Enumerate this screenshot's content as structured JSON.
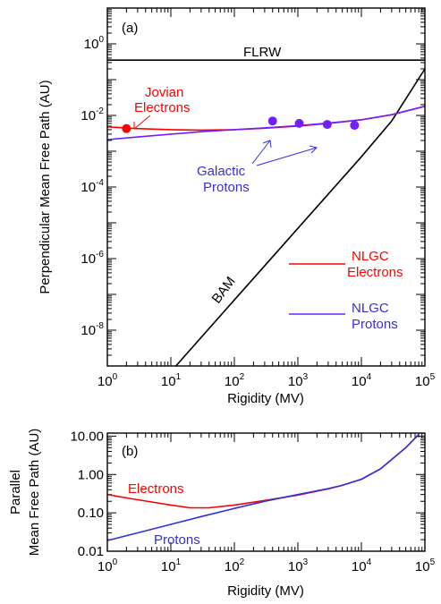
{
  "chart_data": [
    {
      "type": "line",
      "panel_label": "(a)",
      "xlabel": "Rigidity (MV)",
      "ylabel": "Perpendicular Mean Free Path (AU)",
      "xscale": "log",
      "yscale": "log",
      "xlim": [
        1,
        100000
      ],
      "ylim": [
        1e-09,
        10
      ],
      "x_ticks": [
        {
          "base": "10",
          "exp": "0"
        },
        {
          "base": "10",
          "exp": "1"
        },
        {
          "base": "10",
          "exp": "2"
        },
        {
          "base": "10",
          "exp": "3"
        },
        {
          "base": "10",
          "exp": "4"
        },
        {
          "base": "10",
          "exp": "5"
        }
      ],
      "y_ticks": [
        {
          "base": "10",
          "exp": "0",
          "value": 1
        },
        {
          "base": "10",
          "exp": "-2",
          "value": 0.01
        },
        {
          "base": "10",
          "exp": "-4",
          "value": 0.0001
        },
        {
          "base": "10",
          "exp": "-6",
          "value": 1e-06
        },
        {
          "base": "10",
          "exp": "-8",
          "value": 1e-08
        }
      ],
      "series": [
        {
          "name": "FLRW",
          "color": "#000000",
          "x": [
            1,
            100000
          ],
          "y": [
            0.35,
            0.35
          ]
        },
        {
          "name": "BAM",
          "color": "#000000",
          "x": [
            12,
            100,
            1000,
            10000,
            30000,
            100000
          ],
          "y": [
            1e-09,
            7e-08,
            7e-06,
            0.0007,
            0.007,
            0.2
          ]
        },
        {
          "name": "NLGC Electrons",
          "color": "#ff0000",
          "x": [
            1,
            3,
            10,
            30,
            100,
            300,
            1000,
            3000,
            10000,
            30000,
            100000
          ],
          "y": [
            0.0048,
            0.0043,
            0.004,
            0.0039,
            0.004,
            0.0044,
            0.005,
            0.006,
            0.0075,
            0.0105,
            0.018
          ]
        },
        {
          "name": "NLGC Protons",
          "color": "#7020ff",
          "x": [
            1,
            3,
            10,
            30,
            100,
            300,
            1000,
            3000,
            10000,
            30000,
            100000
          ],
          "y": [
            0.0021,
            0.0025,
            0.003,
            0.0035,
            0.004,
            0.0045,
            0.0052,
            0.0061,
            0.0076,
            0.0105,
            0.018
          ]
        }
      ],
      "points": [
        {
          "group": "Jovian Electrons",
          "color": "#ff0000",
          "x": 2,
          "y": 0.0043
        },
        {
          "group": "Galactic Protons",
          "color": "#7020ff",
          "x": 400,
          "y": 0.007
        },
        {
          "group": "Galactic Protons",
          "color": "#7020ff",
          "x": 1050,
          "y": 0.006
        },
        {
          "group": "Galactic Protons",
          "color": "#7020ff",
          "x": 2900,
          "y": 0.0056
        },
        {
          "group": "Galactic Protons",
          "color": "#7020ff",
          "x": 7800,
          "y": 0.0053
        }
      ],
      "annotations": {
        "flrw": "FLRW",
        "bam": "BAM",
        "jovian_line1": "Jovian",
        "jovian_line2": "Electrons",
        "galactic_line1": "Galactic",
        "galactic_line2": "Protons",
        "legend_electrons_line1": "NLGC",
        "legend_electrons_line2": "Electrons",
        "legend_protons_line1": "NLGC",
        "legend_protons_line2": "Protons"
      }
    },
    {
      "type": "line",
      "panel_label": "(b)",
      "xlabel": "Rigidity (MV)",
      "ylabel_line1": "Parallel",
      "ylabel_line2": "Mean Free Path (AU)",
      "xscale": "log",
      "yscale": "log",
      "xlim": [
        1,
        100000
      ],
      "ylim": [
        0.01,
        12
      ],
      "x_ticks": [
        {
          "base": "10",
          "exp": "0"
        },
        {
          "base": "10",
          "exp": "1"
        },
        {
          "base": "10",
          "exp": "2"
        },
        {
          "base": "10",
          "exp": "3"
        },
        {
          "base": "10",
          "exp": "4"
        },
        {
          "base": "10",
          "exp": "5"
        }
      ],
      "y_ticks": [
        {
          "label": "10.00",
          "value": 10
        },
        {
          "label": "1.00",
          "value": 1
        },
        {
          "label": "0.10",
          "value": 0.1
        },
        {
          "label": "0.01",
          "value": 0.01
        }
      ],
      "series": [
        {
          "name": "Electrons",
          "color": "#ff0000",
          "x": [
            1,
            3,
            10,
            20,
            40,
            100,
            300,
            1000,
            3000,
            5000,
            10000,
            20000,
            50000,
            80000
          ],
          "y": [
            0.3,
            0.22,
            0.16,
            0.135,
            0.135,
            0.16,
            0.21,
            0.29,
            0.42,
            0.52,
            0.75,
            1.4,
            5,
            11
          ]
        },
        {
          "name": "Protons",
          "color": "#3030dd",
          "x": [
            1,
            3,
            10,
            30,
            100,
            300,
            1000,
            3000,
            5000,
            10000,
            20000,
            50000,
            80000
          ],
          "y": [
            0.019,
            0.03,
            0.05,
            0.08,
            0.13,
            0.2,
            0.3,
            0.43,
            0.52,
            0.75,
            1.4,
            5,
            11
          ]
        }
      ],
      "annotations": {
        "electrons": "Electrons",
        "protons": "Protons"
      }
    }
  ]
}
